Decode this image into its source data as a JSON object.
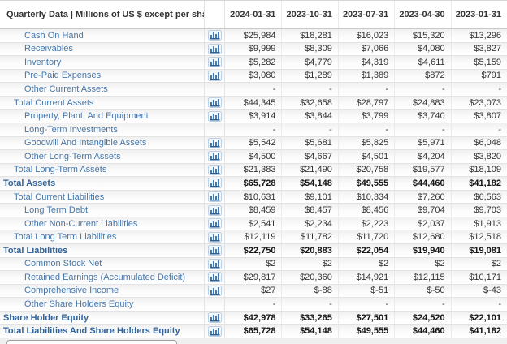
{
  "table": {
    "header": {
      "title": "Quarterly Data | Millions of US $ except per share data",
      "columns": [
        "2024-01-31",
        "2023-10-31",
        "2023-07-31",
        "2023-04-30",
        "2023-01-31"
      ]
    },
    "rows": [
      {
        "label": "Cash On Hand",
        "indent": 2,
        "bold": false,
        "chart_icon": true,
        "values": [
          "$25,984",
          "$18,281",
          "$16,023",
          "$15,320",
          "$13,296"
        ]
      },
      {
        "label": "Receivables",
        "indent": 2,
        "bold": false,
        "chart_icon": true,
        "values": [
          "$9,999",
          "$8,309",
          "$7,066",
          "$4,080",
          "$3,827"
        ]
      },
      {
        "label": "Inventory",
        "indent": 2,
        "bold": false,
        "chart_icon": true,
        "values": [
          "$5,282",
          "$4,779",
          "$4,319",
          "$4,611",
          "$5,159"
        ]
      },
      {
        "label": "Pre-Paid Expenses",
        "indent": 2,
        "bold": false,
        "chart_icon": true,
        "values": [
          "$3,080",
          "$1,289",
          "$1,389",
          "$872",
          "$791"
        ]
      },
      {
        "label": "Other Current Assets",
        "indent": 2,
        "bold": false,
        "chart_icon": false,
        "values": [
          "-",
          "-",
          "-",
          "-",
          "-"
        ]
      },
      {
        "label": "Total Current Assets",
        "indent": 1,
        "bold": false,
        "chart_icon": true,
        "values": [
          "$44,345",
          "$32,658",
          "$28,797",
          "$24,883",
          "$23,073"
        ]
      },
      {
        "label": "Property, Plant, And Equipment",
        "indent": 2,
        "bold": false,
        "chart_icon": true,
        "values": [
          "$3,914",
          "$3,844",
          "$3,799",
          "$3,740",
          "$3,807"
        ]
      },
      {
        "label": "Long-Term Investments",
        "indent": 2,
        "bold": false,
        "chart_icon": false,
        "values": [
          "-",
          "-",
          "-",
          "-",
          "-"
        ]
      },
      {
        "label": "Goodwill And Intangible Assets",
        "indent": 2,
        "bold": false,
        "chart_icon": true,
        "values": [
          "$5,542",
          "$5,681",
          "$5,825",
          "$5,971",
          "$6,048"
        ]
      },
      {
        "label": "Other Long-Term Assets",
        "indent": 2,
        "bold": false,
        "chart_icon": true,
        "values": [
          "$4,500",
          "$4,667",
          "$4,501",
          "$4,204",
          "$3,820"
        ]
      },
      {
        "label": "Total Long-Term Assets",
        "indent": 1,
        "bold": false,
        "chart_icon": true,
        "values": [
          "$21,383",
          "$21,490",
          "$20,758",
          "$19,577",
          "$18,109"
        ]
      },
      {
        "label": "Total Assets",
        "indent": 0,
        "bold": true,
        "chart_icon": true,
        "values": [
          "$65,728",
          "$54,148",
          "$49,555",
          "$44,460",
          "$41,182"
        ]
      },
      {
        "label": "Total Current Liabilities",
        "indent": 1,
        "bold": false,
        "chart_icon": true,
        "values": [
          "$10,631",
          "$9,101",
          "$10,334",
          "$7,260",
          "$6,563"
        ]
      },
      {
        "label": "Long Term Debt",
        "indent": 2,
        "bold": false,
        "chart_icon": true,
        "values": [
          "$8,459",
          "$8,457",
          "$8,456",
          "$9,704",
          "$9,703"
        ]
      },
      {
        "label": "Other Non-Current Liabilities",
        "indent": 2,
        "bold": false,
        "chart_icon": true,
        "values": [
          "$2,541",
          "$2,234",
          "$2,223",
          "$2,037",
          "$1,913"
        ]
      },
      {
        "label": "Total Long Term Liabilities",
        "indent": 1,
        "bold": false,
        "chart_icon": true,
        "values": [
          "$12,119",
          "$11,782",
          "$11,720",
          "$12,680",
          "$12,518"
        ]
      },
      {
        "label": "Total Liabilities",
        "indent": 0,
        "bold": true,
        "chart_icon": true,
        "values": [
          "$22,750",
          "$20,883",
          "$22,054",
          "$19,940",
          "$19,081"
        ]
      },
      {
        "label": "Common Stock Net",
        "indent": 2,
        "bold": false,
        "chart_icon": true,
        "values": [
          "$2",
          "$2",
          "$2",
          "$2",
          "$2"
        ]
      },
      {
        "label": "Retained Earnings (Accumulated Deficit)",
        "indent": 2,
        "bold": false,
        "chart_icon": true,
        "values": [
          "$29,817",
          "$20,360",
          "$14,921",
          "$12,115",
          "$10,171"
        ]
      },
      {
        "label": "Comprehensive Income",
        "indent": 2,
        "bold": false,
        "chart_icon": true,
        "values": [
          "$27",
          "$-88",
          "$-51",
          "$-50",
          "$-43"
        ]
      },
      {
        "label": "Other Share Holders Equity",
        "indent": 2,
        "bold": false,
        "chart_icon": false,
        "values": [
          "-",
          "-",
          "-",
          "-",
          "-"
        ]
      },
      {
        "label": "Share Holder Equity",
        "indent": 0,
        "bold": true,
        "chart_icon": true,
        "values": [
          "$42,978",
          "$33,265",
          "$27,501",
          "$24,520",
          "$22,101"
        ]
      },
      {
        "label": "Total Liabilities And Share Holders Equity",
        "indent": 0,
        "bold": true,
        "chart_icon": true,
        "values": [
          "$65,728",
          "$54,148",
          "$49,555",
          "$44,460",
          "$41,182"
        ]
      }
    ]
  },
  "icons": {
    "row_chart": "bar-chart-icon"
  },
  "colors": {
    "link_blue": "#4577ab",
    "bold_link_blue": "#2f639b",
    "value_text": "#333333",
    "row_border": "#e3e3e3",
    "header_border": "#c9c9c9",
    "icon_bar_blue": "#4679ae",
    "icon_baseline_blue": "#2e6093"
  }
}
